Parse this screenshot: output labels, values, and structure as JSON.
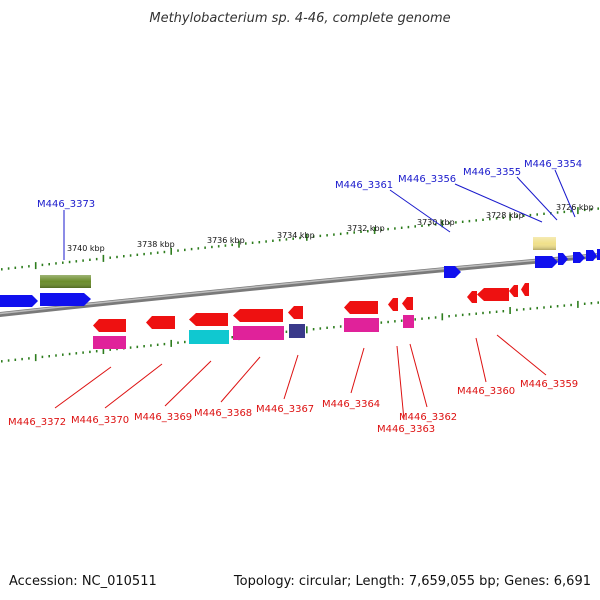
{
  "title": "Methylobacterium sp. 4-46, complete genome",
  "footer": {
    "accession": "Accession: NC_010511",
    "summary": "Topology: circular; Length: 7,659,055 bp; Genes: 6,691"
  },
  "colors": {
    "backbone": "#8a8a8a",
    "tick": "#2e7d1e",
    "label_forward": "#1a1acc",
    "label_reverse": "#dd1111",
    "blue": "#1010ee",
    "red": "#ee1111",
    "magenta": "#e0229a",
    "cyan": "#10c8d0",
    "olive": "#6a8c2a",
    "navy": "#3a3a8a",
    "khaki": "#f0e08a"
  },
  "scale": {
    "unit": "kbp",
    "tick_labels": [
      "3740 kbp",
      "3738 kbp",
      "3736 kbp",
      "3734 kbp",
      "3732 kbp",
      "3730 kbp",
      "3728 kbp",
      "3726 kbp"
    ]
  },
  "forward_labels": [
    "M446_3373",
    "M446_3361",
    "M446_3356",
    "M446_3355",
    "M446_3354"
  ],
  "reverse_labels": [
    "M446_3372",
    "M446_3370",
    "M446_3369",
    "M446_3368",
    "M446_3367",
    "M446_3364",
    "M446_3362",
    "M446_3363",
    "M446_3360",
    "M446_3359"
  ]
}
